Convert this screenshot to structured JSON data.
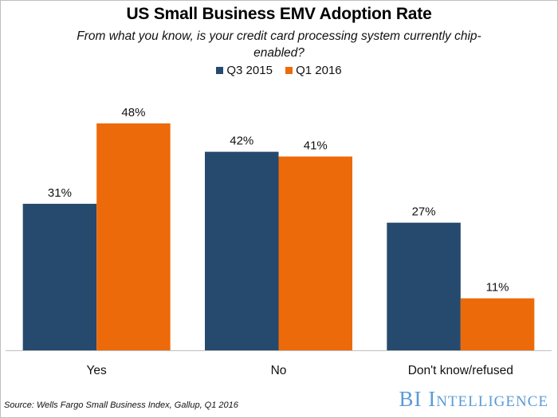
{
  "chart_data": {
    "type": "bar",
    "title": "US Small Business EMV Adoption Rate",
    "subtitle": "From what you know, is your credit card processing system currently chip-enabled?",
    "categories": [
      "Yes",
      "No",
      "Don't know/refused"
    ],
    "series": [
      {
        "name": "Q3 2015",
        "color": "#254a6e",
        "values": [
          31,
          42,
          27
        ]
      },
      {
        "name": "Q1 2016",
        "color": "#ed6a0a",
        "values": [
          48,
          41,
          11
        ]
      }
    ],
    "value_suffix": "%",
    "xlabel": "",
    "ylabel": "",
    "ylim": [
      0,
      48
    ],
    "grid": false,
    "legend_position": "top-center",
    "data_labels": true
  },
  "footer": {
    "source": "Source: Wells Fargo Small Business Index, Gallup, Q1 2016",
    "brand": "BI Intelligence"
  }
}
